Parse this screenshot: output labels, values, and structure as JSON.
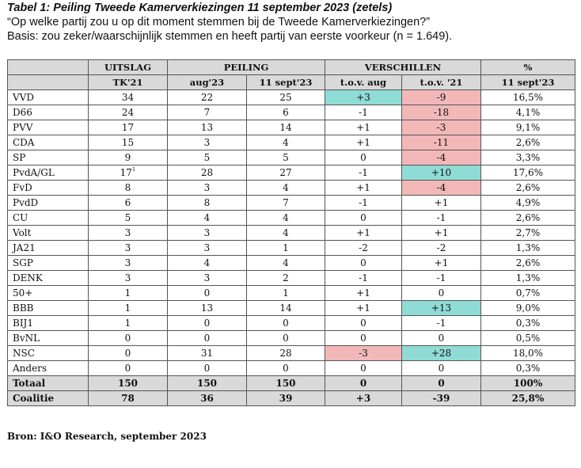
{
  "header": {
    "title": "Tabel 1: Peiling Tweede Kamerverkiezingen 11 september 2023 (zetels)",
    "question": "“Op welke partij zou u op dit moment stemmen bij de Tweede Kamerverkiezingen?”",
    "basis": "Basis: zou zeker/waarschijnlijk stemmen en heeft partij van eerste voorkeur (n = 1.649)."
  },
  "table": {
    "groups": {
      "uitslag": "UITSLAG",
      "peiling": "PEILING",
      "verschillen": "VERSCHILLEN",
      "pct": "%"
    },
    "subheaders": [
      "",
      "TK'21",
      "aug'23",
      "11 sept'23",
      "t.o.v. aug",
      "t.o.v. '21",
      "11 sept'23"
    ],
    "rows": [
      {
        "party": "VVD",
        "tk21": "34",
        "aug23": "22",
        "sept23": "25",
        "d_aug": "+3",
        "d_21": "-9",
        "pct": "16,5%",
        "hl_aug": "g",
        "hl_21": "r"
      },
      {
        "party": "D66",
        "tk21": "24",
        "aug23": "7",
        "sept23": "6",
        "d_aug": "-1",
        "d_21": "-18",
        "pct": "4,1%",
        "hl_aug": "",
        "hl_21": "r"
      },
      {
        "party": "PVV",
        "tk21": "17",
        "aug23": "13",
        "sept23": "14",
        "d_aug": "+1",
        "d_21": "-3",
        "pct": "9,1%",
        "hl_aug": "",
        "hl_21": "r"
      },
      {
        "party": "CDA",
        "tk21": "15",
        "aug23": "3",
        "sept23": "4",
        "d_aug": "+1",
        "d_21": "-11",
        "pct": "2,6%",
        "hl_aug": "",
        "hl_21": "r"
      },
      {
        "party": "SP",
        "tk21": "9",
        "aug23": "5",
        "sept23": "5",
        "d_aug": "0",
        "d_21": "-4",
        "pct": "3,3%",
        "hl_aug": "",
        "hl_21": "r"
      },
      {
        "party": "PvdA/GL",
        "tk21": "17",
        "tk21_sup": "1",
        "aug23": "28",
        "sept23": "27",
        "d_aug": "-1",
        "d_21": "+10",
        "pct": "17,6%",
        "hl_aug": "",
        "hl_21": "g"
      },
      {
        "party": "FvD",
        "tk21": "8",
        "aug23": "3",
        "sept23": "4",
        "d_aug": "+1",
        "d_21": "-4",
        "pct": "2,6%",
        "hl_aug": "",
        "hl_21": "r"
      },
      {
        "party": "PvdD",
        "tk21": "6",
        "aug23": "8",
        "sept23": "7",
        "d_aug": "-1",
        "d_21": "+1",
        "pct": "4,9%",
        "hl_aug": "",
        "hl_21": ""
      },
      {
        "party": "CU",
        "tk21": "5",
        "aug23": "4",
        "sept23": "4",
        "d_aug": "0",
        "d_21": "-1",
        "pct": "2,6%",
        "hl_aug": "",
        "hl_21": ""
      },
      {
        "party": "Volt",
        "tk21": "3",
        "aug23": "3",
        "sept23": "4",
        "d_aug": "+1",
        "d_21": "+1",
        "pct": "2,7%",
        "hl_aug": "",
        "hl_21": ""
      },
      {
        "party": "JA21",
        "tk21": "3",
        "aug23": "3",
        "sept23": "1",
        "d_aug": "-2",
        "d_21": "-2",
        "pct": "1,3%",
        "hl_aug": "",
        "hl_21": ""
      },
      {
        "party": "SGP",
        "tk21": "3",
        "aug23": "4",
        "sept23": "4",
        "d_aug": "0",
        "d_21": "+1",
        "pct": "2,6%",
        "hl_aug": "",
        "hl_21": ""
      },
      {
        "party": "DENK",
        "tk21": "3",
        "aug23": "3",
        "sept23": "2",
        "d_aug": "-1",
        "d_21": "-1",
        "pct": "1,3%",
        "hl_aug": "",
        "hl_21": ""
      },
      {
        "party": "50+",
        "tk21": "1",
        "aug23": "0",
        "sept23": "1",
        "d_aug": "+1",
        "d_21": "0",
        "pct": "0,7%",
        "hl_aug": "",
        "hl_21": ""
      },
      {
        "party": "BBB",
        "tk21": "1",
        "aug23": "13",
        "sept23": "14",
        "d_aug": "+1",
        "d_21": "+13",
        "pct": "9,0%",
        "hl_aug": "",
        "hl_21": "g"
      },
      {
        "party": "BIJ1",
        "tk21": "1",
        "aug23": "0",
        "sept23": "0",
        "d_aug": "0",
        "d_21": "-1",
        "pct": "0,3%",
        "hl_aug": "",
        "hl_21": ""
      },
      {
        "party": "BvNL",
        "tk21": "0",
        "aug23": "0",
        "sept23": "0",
        "d_aug": "0",
        "d_21": "0",
        "pct": "0,5%",
        "hl_aug": "",
        "hl_21": ""
      },
      {
        "party": "NSC",
        "tk21": "0",
        "aug23": "31",
        "sept23": "28",
        "d_aug": "-3",
        "d_21": "+28",
        "pct": "18,0%",
        "hl_aug": "r",
        "hl_21": "g"
      },
      {
        "party": "Anders",
        "tk21": "0",
        "aug23": "0",
        "sept23": "0",
        "d_aug": "0",
        "d_21": "0",
        "pct": "0,3%",
        "hl_aug": "",
        "hl_21": ""
      }
    ],
    "totals": [
      {
        "party": "Totaal",
        "tk21": "150",
        "aug23": "150",
        "sept23": "150",
        "d_aug": "0",
        "d_21": "0",
        "pct": "100%"
      },
      {
        "party": "Coalitie",
        "tk21": "78",
        "aug23": "36",
        "sept23": "39",
        "d_aug": "+3",
        "d_21": "-39",
        "pct": "25,8%"
      }
    ],
    "colors": {
      "positive_highlight": "#8fdcd6",
      "negative_highlight": "#f2b8b8",
      "header_bg": "#d9d9d9"
    }
  },
  "source": "Bron: I&O Research, september 2023"
}
